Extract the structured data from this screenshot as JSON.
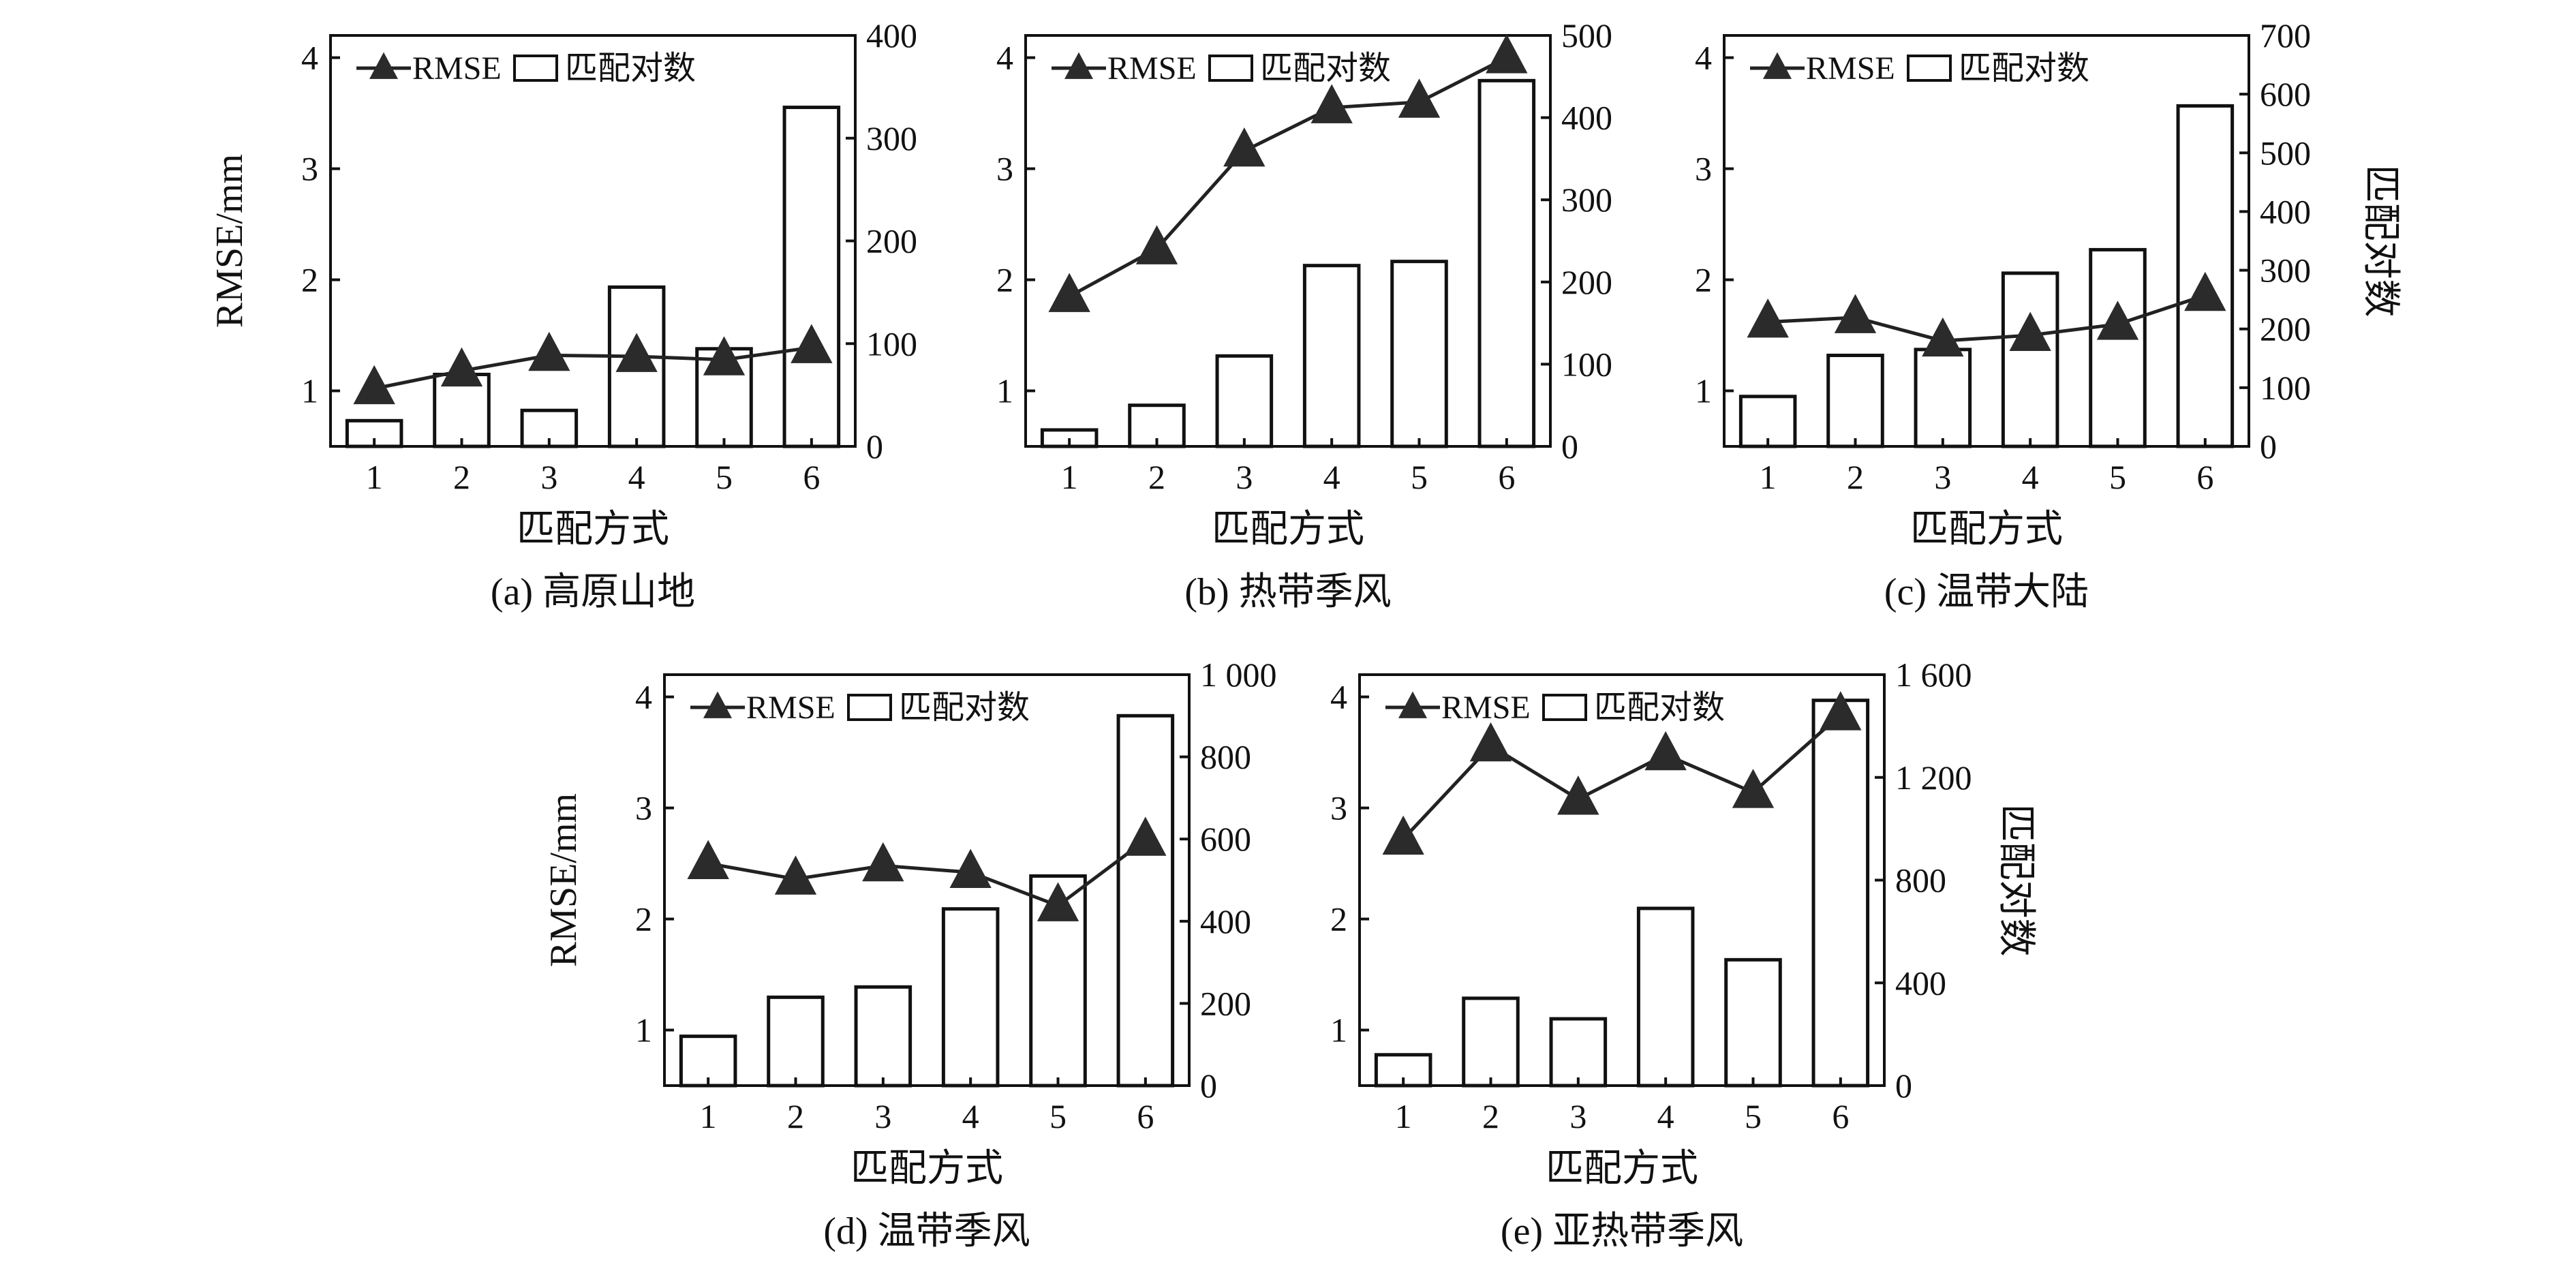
{
  "legend": {
    "rmse_label": "RMSE",
    "pairs_label": "匹配对数"
  },
  "axis_titles": {
    "x": "匹配方式",
    "y_left": "RMSE/mm",
    "y_right": "匹配对数"
  },
  "colors": {
    "bar_fill": "#ffffff",
    "bar_stroke": "#111111",
    "marker": "#2b2b2b",
    "line": "#222222",
    "frame": "#111111"
  },
  "chart_data": [
    {
      "type": "bar",
      "caption": "(a) 高原山地",
      "categories": [
        "1",
        "2",
        "3",
        "4",
        "5",
        "6"
      ],
      "series": [
        {
          "name": "匹配对数",
          "axis": "right",
          "values": [
            25,
            70,
            35,
            155,
            95,
            330
          ]
        },
        {
          "name": "RMSE",
          "type": "line",
          "axis": "left",
          "values": [
            1.02,
            1.18,
            1.32,
            1.31,
            1.28,
            1.39
          ]
        }
      ],
      "y_left": {
        "range": [
          0.5,
          4.2
        ],
        "ticks": [
          1,
          2,
          3,
          4
        ]
      },
      "y_right": {
        "range": [
          0,
          400
        ],
        "ticks": [
          0,
          100,
          200,
          300,
          400
        ]
      },
      "show_y_left_title": true,
      "show_y_right_title": false
    },
    {
      "type": "bar",
      "caption": "(b) 热带季风",
      "categories": [
        "1",
        "2",
        "3",
        "4",
        "5",
        "6"
      ],
      "series": [
        {
          "name": "匹配对数",
          "axis": "right",
          "values": [
            20,
            50,
            110,
            220,
            225,
            445
          ]
        },
        {
          "name": "RMSE",
          "type": "line",
          "axis": "left",
          "values": [
            1.85,
            2.28,
            3.16,
            3.55,
            3.6,
            4.0
          ]
        }
      ],
      "y_left": {
        "range": [
          0.5,
          4.2
        ],
        "ticks": [
          1,
          2,
          3,
          4
        ]
      },
      "y_right": {
        "range": [
          0,
          500
        ],
        "ticks": [
          0,
          100,
          200,
          300,
          400,
          500
        ]
      },
      "show_y_left_title": false,
      "show_y_right_title": false
    },
    {
      "type": "bar",
      "caption": "(c) 温带大陆",
      "categories": [
        "1",
        "2",
        "3",
        "4",
        "5",
        "6"
      ],
      "series": [
        {
          "name": "匹配对数",
          "axis": "right",
          "values": [
            85,
            155,
            165,
            295,
            335,
            580
          ]
        },
        {
          "name": "RMSE",
          "type": "line",
          "axis": "left",
          "values": [
            1.62,
            1.66,
            1.45,
            1.5,
            1.6,
            1.86
          ]
        }
      ],
      "y_left": {
        "range": [
          0.5,
          4.2
        ],
        "ticks": [
          1,
          2,
          3,
          4
        ]
      },
      "y_right": {
        "range": [
          0,
          700
        ],
        "ticks": [
          0,
          100,
          200,
          300,
          400,
          500,
          600,
          700
        ]
      },
      "show_y_left_title": false,
      "show_y_right_title": true
    },
    {
      "type": "bar",
      "caption": "(d) 温带季风",
      "categories": [
        "1",
        "2",
        "3",
        "4",
        "5",
        "6"
      ],
      "series": [
        {
          "name": "匹配对数",
          "axis": "right",
          "values": [
            120,
            215,
            240,
            430,
            510,
            900
          ]
        },
        {
          "name": "RMSE",
          "type": "line",
          "axis": "left",
          "values": [
            2.5,
            2.36,
            2.48,
            2.42,
            2.12,
            2.71
          ]
        }
      ],
      "y_left": {
        "range": [
          0.5,
          4.2
        ],
        "ticks": [
          1,
          2,
          3,
          4
        ]
      },
      "y_right": {
        "range": [
          0,
          1000
        ],
        "ticks": [
          0,
          200,
          400,
          600,
          800,
          1000
        ],
        "tick_labels": [
          "0",
          "200",
          "400",
          "600",
          "800",
          "1 000"
        ]
      },
      "show_y_left_title": true,
      "show_y_right_title": false
    },
    {
      "type": "bar",
      "caption": "(e) 亚热带季风",
      "categories": [
        "1",
        "2",
        "3",
        "4",
        "5",
        "6"
      ],
      "series": [
        {
          "name": "匹配对数",
          "axis": "right",
          "values": [
            120,
            340,
            260,
            690,
            490,
            1500
          ]
        },
        {
          "name": "RMSE",
          "type": "line",
          "axis": "left",
          "values": [
            2.72,
            3.56,
            3.08,
            3.48,
            3.14,
            3.84
          ]
        }
      ],
      "y_left": {
        "range": [
          0.5,
          4.2
        ],
        "ticks": [
          1,
          2,
          3,
          4
        ]
      },
      "y_right": {
        "range": [
          0,
          1600
        ],
        "ticks": [
          0,
          400,
          800,
          1200,
          1600
        ],
        "tick_labels": [
          "0",
          "400",
          "800",
          "1 200",
          "1 600"
        ]
      },
      "show_y_left_title": false,
      "show_y_right_title": true
    }
  ]
}
